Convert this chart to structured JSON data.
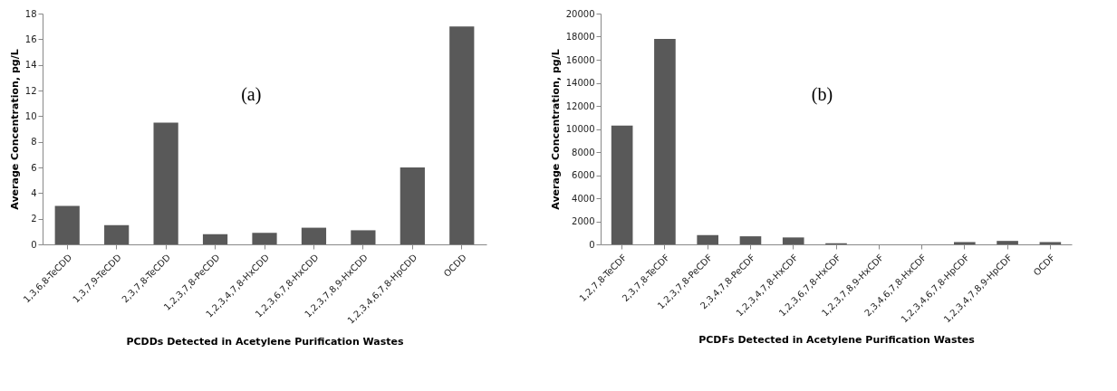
{
  "chart_data": [
    {
      "type": "bar",
      "xlabel": "PCDDs Detected in Acetylene Purification Wastes",
      "ylabel": "Average Concentration, pg/L",
      "annotations": [
        "(a)"
      ],
      "categories": [
        "1,3,6,8-TeCDD",
        "1,3,7,9-TeCDD",
        "2,3,7,8-TeCDD",
        "1,2,3,7,8-PeCDD",
        "1,2,3,4,7,8-HxCDD",
        "1,2,3,6,7,8-HxCDD",
        "1,2,3,7,8,9-HxCDD",
        "1,2,3,4,6,7,8-HpCDD",
        "OCDD"
      ],
      "values": [
        3.0,
        1.5,
        9.5,
        0.8,
        0.9,
        1.3,
        1.1,
        6.0,
        17.0
      ],
      "color": "#595959",
      "ylim": [
        0,
        18
      ],
      "yticks": [
        0,
        2,
        4,
        6,
        8,
        10,
        12,
        14,
        16,
        18
      ],
      "grid": false
    },
    {
      "type": "bar",
      "xlabel": "PCDFs Detected in Acetylene Purification Wastes",
      "ylabel": "Average Concentration, pg/L",
      "annotations": [
        "(b)"
      ],
      "categories": [
        "1,2,7,8-TeCDF",
        "2,3,7,8-TeCDF",
        "1,2,3,7,8-PeCDF",
        "2,3,4,7,8-PeCDF",
        "1,2,3,4,7,8-HxCDF",
        "1,2,3,6,7,8-HxCDF",
        "1,2,3,7,8,9-HxCDF",
        "2,3,4,6,7,8-HxCDF",
        "1,2,3,4,6,7,8-HpCDF",
        "1,2,3,4,7,8,9-HpCDF",
        "OCDF"
      ],
      "values": [
        10300,
        17800,
        800,
        700,
        600,
        100,
        0,
        0,
        200,
        300,
        200
      ],
      "color": "#595959",
      "ylim": [
        0,
        20000
      ],
      "yticks": [
        0,
        2000,
        4000,
        6000,
        8000,
        10000,
        12000,
        14000,
        16000,
        18000,
        20000
      ],
      "grid": false
    }
  ]
}
